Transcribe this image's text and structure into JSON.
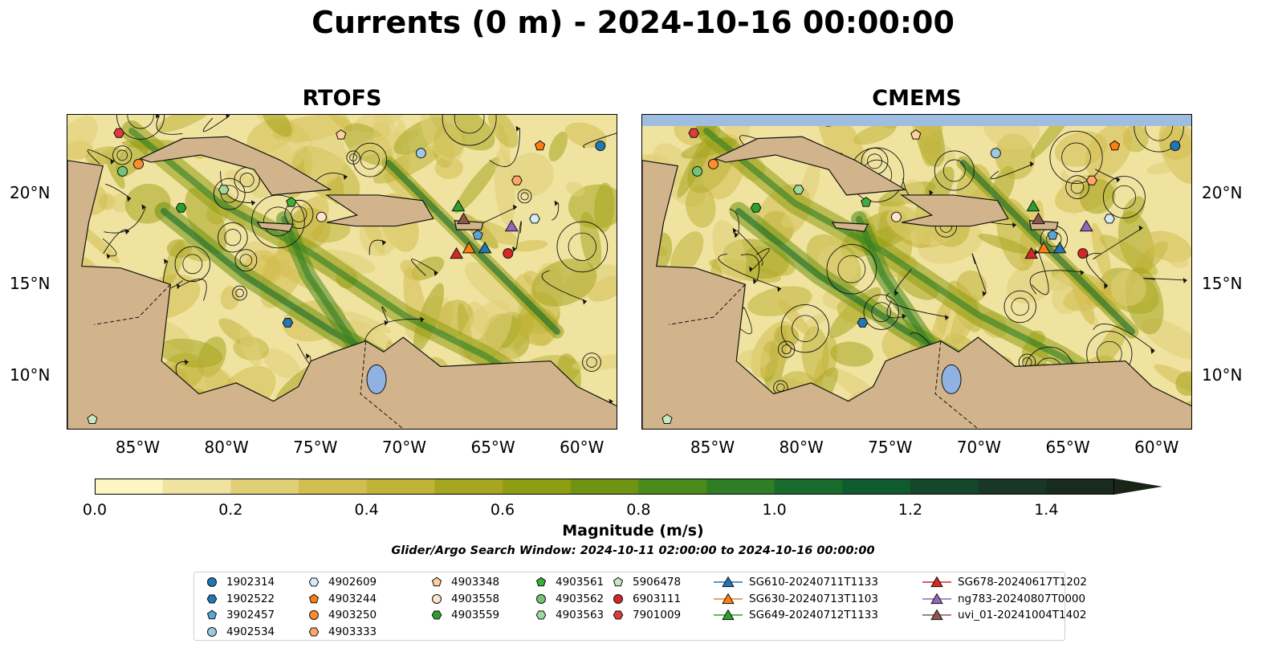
{
  "title": "Currents (0 m) - 2024-10-16 00:00:00",
  "panels": [
    {
      "name": "RTOFS",
      "land_color": "#d2b48c",
      "edge_band": false
    },
    {
      "name": "CMEMS",
      "land_color": "#d2b48c",
      "edge_band": true,
      "edge_band_color": "#9fbde0"
    }
  ],
  "map_extent": {
    "lon": [
      -89,
      -58
    ],
    "lat": [
      7,
      24.3
    ]
  },
  "x_ticks": [
    "85°W",
    "80°W",
    "75°W",
    "70°W",
    "65°W",
    "60°W"
  ],
  "x_tick_values": [
    -85,
    -80,
    -75,
    -70,
    -65,
    -60
  ],
  "y_ticks": [
    "20°N",
    "15°N",
    "10°N"
  ],
  "y_tick_values": [
    20,
    15,
    10
  ],
  "colorbar": {
    "label": "Magnitude (m/s)",
    "min": 0.0,
    "max": 1.5,
    "extend": "max",
    "tick_labels": [
      "0.0",
      "0.2",
      "0.4",
      "0.6",
      "0.8",
      "1.0",
      "1.2",
      "1.4"
    ],
    "tick_values": [
      0.0,
      0.2,
      0.4,
      0.6,
      0.8,
      1.0,
      1.2,
      1.4
    ],
    "colors": [
      "#fdf6c3",
      "#f0e3a0",
      "#e0cf76",
      "#d2bd50",
      "#c0b336",
      "#a7a620",
      "#8f9d12",
      "#6f9312",
      "#4c8a1c",
      "#2f7e26",
      "#186b2c",
      "#0f5a2e",
      "#14472b",
      "#183727",
      "#192a1f",
      "#1a2419"
    ]
  },
  "search_window": "Glider/Argo Search Window: 2024-10-11 02:00:00 to 2024-10-16 00:00:00",
  "legend": [
    {
      "label": "1902314",
      "marker": "circle",
      "color": "#1f77b4"
    },
    {
      "label": "1902522",
      "marker": "hexagon",
      "color": "#1f77b4"
    },
    {
      "label": "3902457",
      "marker": "pentagon",
      "color": "#5aa5d6"
    },
    {
      "label": "4902534",
      "marker": "circle",
      "color": "#9ecae1"
    },
    {
      "label": "4902609",
      "marker": "hexagon",
      "color": "#d4ecf7"
    },
    {
      "label": "4903244",
      "marker": "pentagon",
      "color": "#ff7f0e"
    },
    {
      "label": "4903250",
      "marker": "circle",
      "color": "#ff8c2e"
    },
    {
      "label": "4903333",
      "marker": "hexagon",
      "color": "#ffa866"
    },
    {
      "label": "4903348",
      "marker": "pentagon",
      "color": "#ffcf9c"
    },
    {
      "label": "4903558",
      "marker": "circle",
      "color": "#ffe4cc"
    },
    {
      "label": "4903559",
      "marker": "hexagon",
      "color": "#2ca02c"
    },
    {
      "label": "4903561",
      "marker": "pentagon",
      "color": "#3cae3c"
    },
    {
      "label": "4903562",
      "marker": "circle",
      "color": "#74c476"
    },
    {
      "label": "4903563",
      "marker": "hexagon",
      "color": "#a1d99b"
    },
    {
      "label": "5906478",
      "marker": "pentagon",
      "color": "#c7e9c0"
    },
    {
      "label": "6903111",
      "marker": "circle",
      "color": "#d62728"
    },
    {
      "label": "7901009",
      "marker": "hexagon",
      "color": "#e03a3c"
    },
    {
      "label": "SG610-20240711T1133",
      "marker": "triangle",
      "color": "#1f77b4"
    },
    {
      "label": "SG630-20240713T1103",
      "marker": "triangle",
      "color": "#ff7f0e"
    },
    {
      "label": "SG649-20240712T1133",
      "marker": "triangle",
      "color": "#2ca02c"
    },
    {
      "label": "SG678-20240617T1202",
      "marker": "triangle",
      "color": "#d62728"
    },
    {
      "label": "ng783-20240807T0000",
      "marker": "triangle",
      "color": "#9467bd"
    },
    {
      "label": "uvi_01-20241004T1402",
      "marker": "triangle",
      "color": "#8c564b"
    }
  ],
  "rtofs_markers": [
    {
      "id": "7901009",
      "lon": -86.1,
      "lat": 23.3
    },
    {
      "id": "4903562",
      "lon": -85.9,
      "lat": 21.2
    },
    {
      "id": "4903250",
      "lon": -85.0,
      "lat": 21.6
    },
    {
      "id": "4903563",
      "lon": -80.2,
      "lat": 20.2
    },
    {
      "id": "4903559",
      "lon": -82.6,
      "lat": 19.2
    },
    {
      "id": "4903561",
      "lon": -76.4,
      "lat": 19.5
    },
    {
      "id": "4903558",
      "lon": -74.7,
      "lat": 18.7
    },
    {
      "id": "4903348",
      "lon": -73.6,
      "lat": 23.2
    },
    {
      "id": "4902534",
      "lon": -69.1,
      "lat": 22.2
    },
    {
      "id": "4903244",
      "lon": -62.4,
      "lat": 22.6
    },
    {
      "id": "1902314",
      "lon": -59.0,
      "lat": 22.6
    },
    {
      "id": "4903333",
      "lon": -63.7,
      "lat": 20.7
    },
    {
      "id": "4902609",
      "lon": -62.7,
      "lat": 18.6
    },
    {
      "id": "3902457",
      "lon": -65.9,
      "lat": 17.7
    },
    {
      "id": "6903111",
      "lon": -64.2,
      "lat": 16.7
    },
    {
      "id": "1902522",
      "lon": -76.6,
      "lat": 12.9
    },
    {
      "id": "5906478",
      "lon": -87.6,
      "lat": 7.6
    },
    {
      "id": "SG649-20240712T1133",
      "lon": -67.0,
      "lat": 19.3
    },
    {
      "id": "uvi_01-20241004T1402",
      "lon": -66.7,
      "lat": 18.6
    },
    {
      "id": "ng783-20240807T0000",
      "lon": -64.0,
      "lat": 18.2
    },
    {
      "id": "SG678-20240617T1202",
      "lon": -67.1,
      "lat": 16.7
    },
    {
      "id": "SG630-20240713T1103",
      "lon": -66.4,
      "lat": 17.0
    },
    {
      "id": "SG610-20240711T1133",
      "lon": -65.5,
      "lat": 17.0
    }
  ],
  "cmems_markers": [
    {
      "id": "7901009",
      "lon": -86.1,
      "lat": 23.3
    },
    {
      "id": "4903562",
      "lon": -85.9,
      "lat": 21.2
    },
    {
      "id": "4903250",
      "lon": -85.0,
      "lat": 21.6
    },
    {
      "id": "4903563",
      "lon": -80.2,
      "lat": 20.2
    },
    {
      "id": "4903559",
      "lon": -82.6,
      "lat": 19.2
    },
    {
      "id": "4903561",
      "lon": -76.4,
      "lat": 19.5
    },
    {
      "id": "4903558",
      "lon": -74.7,
      "lat": 18.7
    },
    {
      "id": "4903348",
      "lon": -73.6,
      "lat": 23.2
    },
    {
      "id": "4902534",
      "lon": -69.1,
      "lat": 22.2
    },
    {
      "id": "4903244",
      "lon": -62.4,
      "lat": 22.6
    },
    {
      "id": "1902314",
      "lon": -59.0,
      "lat": 22.6
    },
    {
      "id": "4903333",
      "lon": -63.7,
      "lat": 20.7
    },
    {
      "id": "4902609",
      "lon": -62.7,
      "lat": 18.6
    },
    {
      "id": "3902457",
      "lon": -65.9,
      "lat": 17.7
    },
    {
      "id": "6903111",
      "lon": -64.2,
      "lat": 16.7
    },
    {
      "id": "1902522",
      "lon": -76.6,
      "lat": 12.9
    },
    {
      "id": "5906478",
      "lon": -87.6,
      "lat": 7.6
    },
    {
      "id": "SG649-20240712T1133",
      "lon": -67.0,
      "lat": 19.3
    },
    {
      "id": "uvi_01-20241004T1402",
      "lon": -66.7,
      "lat": 18.6
    },
    {
      "id": "ng783-20240807T0000",
      "lon": -64.0,
      "lat": 18.2
    },
    {
      "id": "SG678-20240617T1202",
      "lon": -67.1,
      "lat": 16.7
    },
    {
      "id": "SG630-20240713T1103",
      "lon": -66.4,
      "lat": 17.0
    },
    {
      "id": "SG610-20240711T1133",
      "lon": -65.5,
      "lat": 17.0
    }
  ]
}
